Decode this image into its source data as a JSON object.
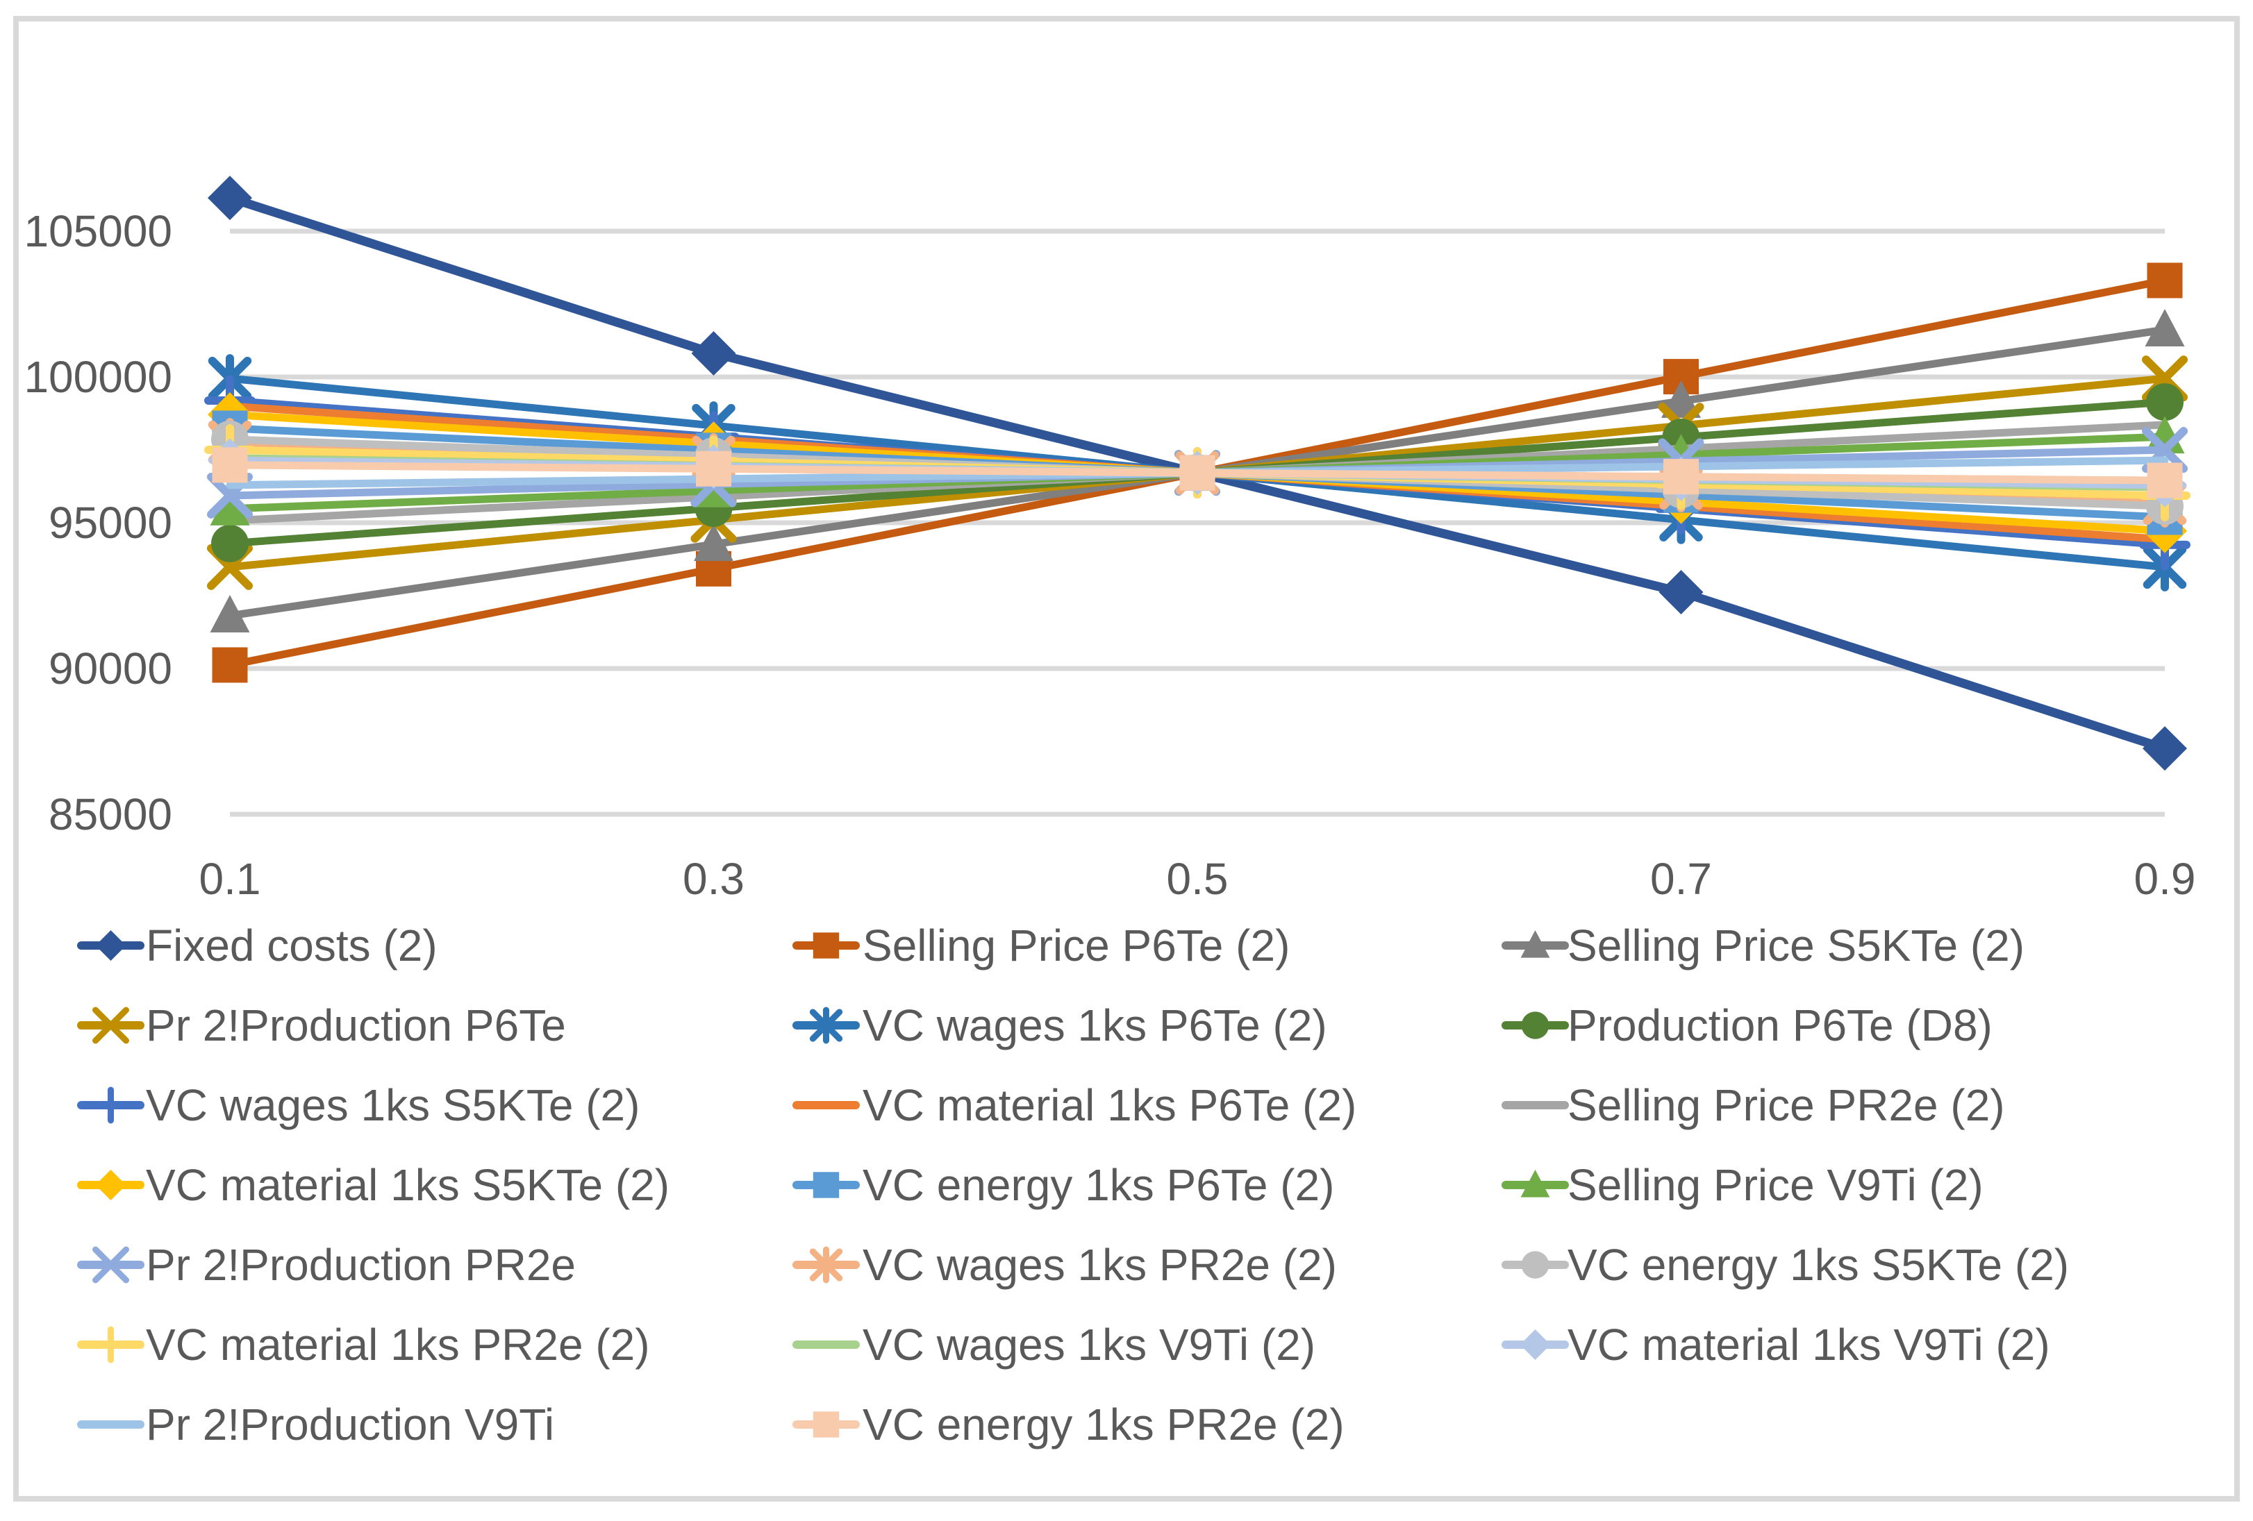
{
  "chart_data": {
    "type": "line",
    "title": "",
    "xlabel": "",
    "ylabel": "",
    "x_tick_labels": [
      "0.1",
      "0.3",
      "0.5",
      "0.7",
      "0.9"
    ],
    "x_values": [
      0.1,
      0.3,
      0.5,
      0.7,
      0.9
    ],
    "y_tick_labels": [
      "85000",
      "90000",
      "95000",
      "100000",
      "105000"
    ],
    "y_tick_values": [
      85000,
      90000,
      95000,
      100000,
      105000
    ],
    "ylim": [
      85000,
      105000
    ],
    "grid": "horizontal",
    "legend_position": "bottom",
    "legend_columns": 3,
    "crossing_point": {
      "x": 0.5,
      "y": 96710
    },
    "series": [
      {
        "name": "Fixed costs (2)",
        "color": "#2F5597",
        "marker": "diamond",
        "width": 13,
        "values": [
          106140,
          100810,
          96710,
          92620,
          87260
        ]
      },
      {
        "name": "Selling Price P6Te (2)",
        "color": "#C55A11",
        "marker": "square",
        "width": 11,
        "values": [
          90120,
          93420,
          96710,
          100010,
          103310
        ]
      },
      {
        "name": "Selling Price S5KTe (2)",
        "color": "#7F7F7F",
        "marker": "triangle",
        "width": 11,
        "values": [
          91810,
          94260,
          96710,
          99170,
          101620
        ]
      },
      {
        "name": "Pr 2!Production P6Te",
        "color": "#BF8F00",
        "marker": "x",
        "width": 11,
        "values": [
          93480,
          95100,
          96710,
          98330,
          99950
        ]
      },
      {
        "name": "VC wages 1ks P6Te (2)",
        "color": "#2E75B6",
        "marker": "asterisk",
        "width": 11,
        "values": [
          99950,
          98330,
          96710,
          95100,
          93480
        ]
      },
      {
        "name": "Production P6Te (D8)",
        "color": "#548235",
        "marker": "circle",
        "width": 11,
        "values": [
          94290,
          95500,
          96710,
          97930,
          99140
        ]
      },
      {
        "name": "VC wages 1ks S5KTe (2)",
        "color": "#4472C4",
        "marker": "plus",
        "width": 11,
        "values": [
          99190,
          97950,
          96710,
          95480,
          94240
        ]
      },
      {
        "name": "VC material 1ks P6Te (2)",
        "color": "#ED7D31",
        "marker": "none",
        "width": 11,
        "values": [
          99000,
          97860,
          96710,
          95570,
          94430
        ]
      },
      {
        "name": "Selling Price PR2e (2)",
        "color": "#A5A5A5",
        "marker": "none",
        "width": 11,
        "values": [
          95070,
          95890,
          96710,
          97540,
          98360
        ]
      },
      {
        "name": "VC material 1ks S5KTe (2)",
        "color": "#FFC000",
        "marker": "diamond",
        "width": 11,
        "values": [
          98710,
          97710,
          96710,
          95720,
          94720
        ]
      },
      {
        "name": "VC energy 1ks P6Te (2)",
        "color": "#5B9BD5",
        "marker": "square",
        "width": 11,
        "values": [
          98240,
          97480,
          96710,
          95950,
          95190
        ]
      },
      {
        "name": "Selling Price V9Ti (2)",
        "color": "#70AD47",
        "marker": "triangle",
        "width": 11,
        "values": [
          95480,
          96100,
          96710,
          97330,
          97950
        ]
      },
      {
        "name": "Pr 2!Production PR2e",
        "color": "#8FAADC",
        "marker": "x",
        "width": 11,
        "values": [
          95930,
          96320,
          96710,
          97110,
          97500
        ]
      },
      {
        "name": "VC wages 1ks PR2e (2)",
        "color": "#F4B183",
        "marker": "asterisk",
        "width": 11,
        "values": [
          97760,
          97240,
          96710,
          96190,
          95670
        ]
      },
      {
        "name": "VC energy 1ks S5KTe (2)",
        "color": "#BFBFBF",
        "marker": "circle",
        "width": 11,
        "values": [
          97860,
          97290,
          96710,
          96140,
          95570
        ]
      },
      {
        "name": "VC material 1ks PR2e (2)",
        "color": "#FFD966",
        "marker": "plus",
        "width": 11,
        "values": [
          97500,
          97110,
          96710,
          96320,
          95930
        ]
      },
      {
        "name": "VC wages 1ks V9Ti (2)",
        "color": "#A9D18E",
        "marker": "none",
        "width": 11,
        "values": [
          97220,
          96960,
          96710,
          96460,
          96210
        ]
      },
      {
        "name": "VC material 1ks V9Ti (2)",
        "color": "#B4C7E7",
        "marker": "diamond",
        "width": 11,
        "values": [
          97140,
          96930,
          96710,
          96500,
          96290
        ]
      },
      {
        "name": "Pr 2!Production V9Ti",
        "color": "#9DC3E6",
        "marker": "none",
        "width": 11,
        "values": [
          96290,
          96500,
          96710,
          96930,
          97140
        ]
      },
      {
        "name": "VC energy 1ks PR2e (2)",
        "color": "#F8CBAD",
        "marker": "square",
        "width": 11,
        "values": [
          96980,
          96850,
          96710,
          96580,
          96450
        ]
      }
    ]
  },
  "colors": {
    "axis_text": "#595959",
    "gridline": "#D9D9D9",
    "chart_border": "#D9D9D9",
    "background": "#FFFFFF"
  }
}
